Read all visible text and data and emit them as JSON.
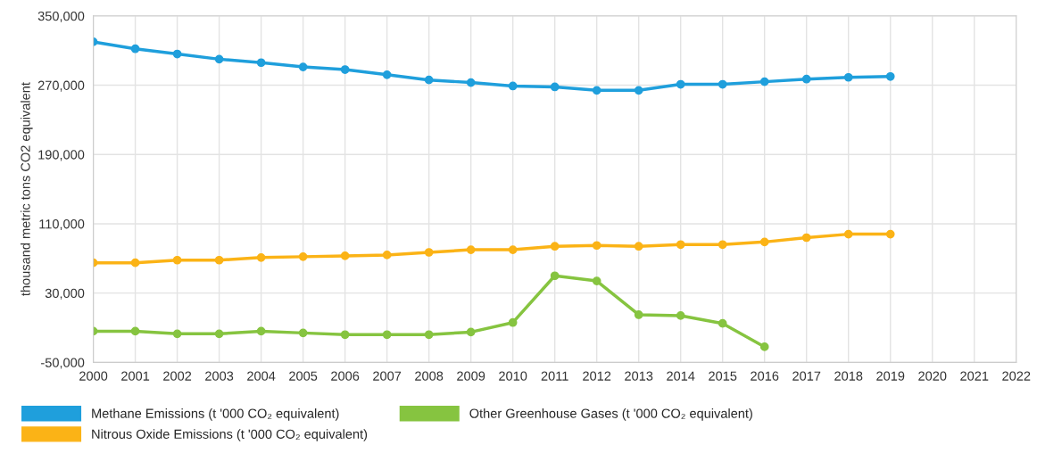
{
  "chart_data": {
    "type": "line",
    "ylabel": "thousand metric tons CO2 equivalent",
    "x": [
      2000,
      2001,
      2002,
      2003,
      2004,
      2005,
      2006,
      2007,
      2008,
      2009,
      2010,
      2011,
      2012,
      2013,
      2014,
      2015,
      2016,
      2017,
      2018,
      2019
    ],
    "series": [
      {
        "name": "Methane Emissions (t '000 CO₂ equivalent)",
        "color": "#1f9fdc",
        "values": [
          320000,
          312000,
          306000,
          300000,
          296000,
          291000,
          288000,
          282000,
          276000,
          273000,
          269000,
          268000,
          264000,
          264000,
          271000,
          271000,
          274000,
          277000,
          279000,
          280000
        ]
      },
      {
        "name": "Nitrous Oxide Emissions (t '000 CO₂ equivalent)",
        "color": "#fbb316",
        "values": [
          65000,
          65000,
          68000,
          68000,
          71000,
          72000,
          73000,
          74000,
          77000,
          80000,
          80000,
          84000,
          85000,
          84000,
          86000,
          86000,
          89000,
          94000,
          98000,
          98000
        ]
      },
      {
        "name": "Other Greenhouse Gases (t '000 CO₂ equivalent)",
        "color": "#86c440",
        "values": [
          -14000,
          -14000,
          -17000,
          -17000,
          -14000,
          -16000,
          -18000,
          -18000,
          -18000,
          -15000,
          -4000,
          50000,
          44000,
          5000,
          4000,
          -5000,
          -32000,
          null,
          null,
          null
        ]
      }
    ],
    "xlim": [
      2000,
      2022
    ],
    "xticks": [
      2000,
      2001,
      2002,
      2003,
      2004,
      2005,
      2006,
      2007,
      2008,
      2009,
      2010,
      2011,
      2012,
      2013,
      2014,
      2015,
      2016,
      2017,
      2018,
      2019,
      2020,
      2021,
      2022
    ],
    "ylim": [
      -50000,
      350000
    ],
    "yticks": [
      {
        "value": -50000,
        "label": "-50,000"
      },
      {
        "value": 30000,
        "label": "30,000"
      },
      {
        "value": 110000,
        "label": "110,000"
      },
      {
        "value": 190000,
        "label": "190,000"
      },
      {
        "value": 270000,
        "label": "270,000"
      },
      {
        "value": 350000,
        "label": "350,000"
      }
    ],
    "grid": true,
    "legend": "bottom",
    "marker": "circle",
    "line_style": "solid"
  }
}
